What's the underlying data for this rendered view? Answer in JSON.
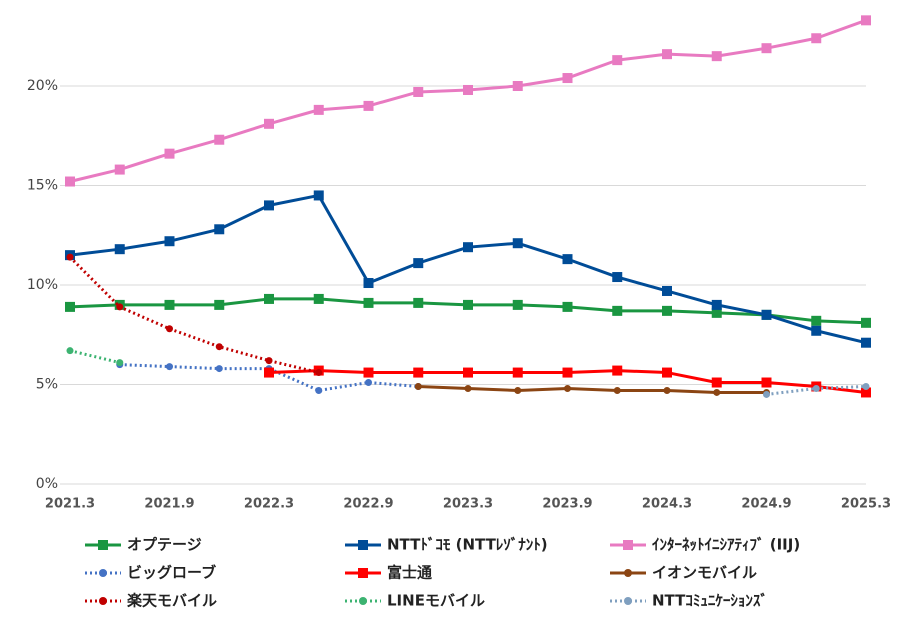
{
  "chart_data": {
    "type": "line",
    "categories": [
      "2021.3",
      null,
      "2021.9",
      null,
      "2022.3",
      null,
      "2022.9",
      null,
      "2023.3",
      null,
      "2023.9",
      null,
      "2024.3",
      null,
      "2024.9",
      null,
      "2025.3"
    ],
    "ylim": [
      0,
      24
    ],
    "yticks": [
      {
        "value": 0,
        "label": "0%"
      },
      {
        "value": 5,
        "label": "5%"
      },
      {
        "value": 10,
        "label": "10%"
      },
      {
        "value": 15,
        "label": "15%"
      },
      {
        "value": 20,
        "label": "20%"
      }
    ],
    "grid": true,
    "series": [
      {
        "name": "オプテージ",
        "color": "#1a9641",
        "marker": "square",
        "dash": "solid",
        "values": [
          8.9,
          9.0,
          9.0,
          9.0,
          9.3,
          9.3,
          9.1,
          9.1,
          9.0,
          9.0,
          8.9,
          8.7,
          8.7,
          8.6,
          8.5,
          8.2,
          8.1
        ]
      },
      {
        "name": "NTTﾄﾞｺﾓ (NTTﾚｿﾞﾅﾝﾄ)",
        "color": "#004c97",
        "marker": "square",
        "dash": "solid",
        "values": [
          11.5,
          11.8,
          12.2,
          12.8,
          14.0,
          14.5,
          10.1,
          11.1,
          11.9,
          12.1,
          11.3,
          10.4,
          9.7,
          9.0,
          8.5,
          7.7,
          7.1
        ]
      },
      {
        "name": "ｲﾝﾀｰﾈｯﾄｲﾆｼｱﾃｨﾌﾞ (IIJ)",
        "color": "#e87ac1",
        "marker": "square",
        "dash": "solid",
        "values": [
          15.2,
          15.8,
          16.6,
          17.3,
          18.1,
          18.8,
          19.0,
          19.7,
          19.8,
          20.0,
          20.4,
          21.3,
          21.6,
          21.5,
          21.9,
          22.4,
          23.3
        ]
      },
      {
        "name": "ビッグローブ",
        "color": "#4472c4",
        "marker": "circle",
        "dash": "dotted",
        "values": [
          null,
          6.0,
          5.9,
          5.8,
          5.8,
          4.7,
          5.1,
          4.9,
          null,
          null,
          null,
          null,
          null,
          null,
          null,
          null,
          null
        ]
      },
      {
        "name": "富士通",
        "color": "#ff0000",
        "marker": "square",
        "dash": "solid",
        "values": [
          null,
          null,
          null,
          null,
          5.6,
          5.7,
          5.6,
          5.6,
          5.6,
          5.6,
          5.6,
          5.7,
          5.6,
          5.1,
          5.1,
          4.9,
          4.6
        ]
      },
      {
        "name": "イオンモバイル",
        "color": "#8b4513",
        "marker": "circle",
        "dash": "solid",
        "values": [
          null,
          null,
          null,
          null,
          null,
          null,
          null,
          4.9,
          4.8,
          4.7,
          4.8,
          4.7,
          4.7,
          4.6,
          4.6,
          null,
          null
        ]
      },
      {
        "name": "楽天モバイル",
        "color": "#c00000",
        "marker": "circle",
        "dash": "dotted",
        "values": [
          11.4,
          8.9,
          7.8,
          6.9,
          6.2,
          5.6,
          null,
          null,
          null,
          null,
          null,
          null,
          null,
          null,
          null,
          null,
          null
        ]
      },
      {
        "name": "LINEモバイル",
        "color": "#3cb371",
        "marker": "circle",
        "dash": "dotted",
        "values": [
          6.7,
          6.1,
          null,
          null,
          null,
          null,
          null,
          null,
          null,
          null,
          null,
          null,
          null,
          null,
          null,
          null,
          null
        ]
      },
      {
        "name": "NTTｺﾐｭﾆｹｰｼｮﾝｽﾞ",
        "color": "#7f9fbf",
        "marker": "circle",
        "dash": "dotted",
        "values": [
          null,
          null,
          null,
          null,
          null,
          null,
          null,
          null,
          null,
          null,
          null,
          null,
          null,
          null,
          4.5,
          4.8,
          4.9
        ]
      }
    ]
  }
}
